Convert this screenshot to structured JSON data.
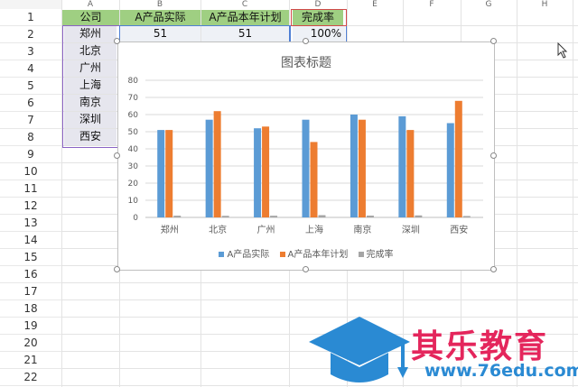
{
  "columns": [
    "A",
    "B",
    "C",
    "D",
    "E",
    "F",
    "G",
    "H"
  ],
  "rows": [
    "1",
    "2",
    "3",
    "4",
    "5",
    "6",
    "7",
    "8",
    "9",
    "10",
    "11",
    "12",
    "13",
    "14",
    "15",
    "16",
    "17",
    "18",
    "19",
    "20",
    "21",
    "22"
  ],
  "table": {
    "headers": [
      "公司",
      "A产品实际",
      "A产品本年计划",
      "完成率"
    ],
    "row2": [
      "郑州",
      "51",
      "51",
      "100%"
    ],
    "cities": [
      "北京",
      "广州",
      "上海",
      "南京",
      "深圳",
      "西安"
    ]
  },
  "colors": {
    "actual": "#5b9bd5",
    "plan": "#ed7d31",
    "rate": "#a5a5a5"
  },
  "chart_data": {
    "type": "bar",
    "title": "图表标题",
    "categories": [
      "郑州",
      "北京",
      "广州",
      "上海",
      "南京",
      "深圳",
      "西安"
    ],
    "series": [
      {
        "name": "A产品实际",
        "values": [
          51,
          57,
          52,
          57,
          60,
          59,
          55
        ]
      },
      {
        "name": "A产品本年计划",
        "values": [
          51,
          62,
          53,
          44,
          57,
          51,
          68
        ]
      },
      {
        "name": "完成率",
        "values": [
          1,
          0.92,
          0.98,
          1.3,
          1.05,
          1.16,
          0.81
        ]
      }
    ],
    "yticks": [
      "0",
      "10",
      "20",
      "30",
      "40",
      "50",
      "60",
      "70",
      "80"
    ],
    "ylim": [
      0,
      80
    ],
    "grid": true,
    "legend": "bottom"
  },
  "brand": {
    "name": "其乐教育",
    "url": "www.76edu.com"
  }
}
